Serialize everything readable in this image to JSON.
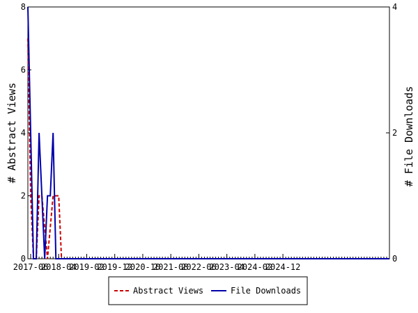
{
  "chart_data": {
    "type": "line",
    "ylabel_left": "# Abstract Views",
    "ylabel_right": "# File Downloads",
    "ylim_left": [
      0,
      8
    ],
    "ylim_right": [
      0,
      4
    ],
    "left_ticks": [
      0,
      2,
      4,
      6,
      8
    ],
    "right_ticks": [
      0,
      2,
      4
    ],
    "x_start": "2017-05",
    "x_ticks": [
      "2017-06",
      "2018-04",
      "2019-02",
      "2019-12",
      "2020-10",
      "2021-08",
      "2022-06",
      "2023-04",
      "2024-02",
      "2024-12"
    ],
    "grid": false,
    "legend_position": "bottom-center",
    "series": [
      {
        "name": "Abstract Views",
        "axis": "left",
        "color": "#cc0000",
        "style": "dashed",
        "values": [
          7,
          2,
          0,
          0,
          2,
          2,
          1,
          0,
          1,
          2,
          2,
          2,
          0,
          0,
          0,
          0,
          0,
          0,
          0,
          0,
          0,
          0,
          0,
          0,
          0,
          0,
          0,
          0,
          0,
          0,
          0,
          0,
          0,
          0,
          0,
          0,
          0,
          0,
          0,
          0,
          0,
          0,
          0,
          0,
          0,
          0,
          0,
          0,
          0,
          0,
          0,
          0,
          0,
          0,
          0,
          0,
          0,
          0,
          0,
          0,
          0,
          0,
          0,
          0,
          0,
          0,
          0,
          0,
          0,
          0,
          0,
          0,
          0,
          0,
          0,
          0,
          0,
          0,
          0,
          0,
          0,
          0,
          0,
          0,
          0,
          0,
          0,
          0,
          0,
          0,
          0,
          0,
          0,
          0,
          0,
          0,
          0,
          0,
          0,
          0,
          0,
          0,
          0,
          0,
          0,
          0,
          0,
          0,
          0,
          0,
          0,
          0,
          0,
          0,
          0,
          0,
          0,
          0,
          0,
          0,
          0,
          0,
          0,
          0,
          0,
          0,
          0,
          0,
          0,
          0
        ]
      },
      {
        "name": "File Downloads",
        "axis": "right",
        "color": "#0000aa",
        "style": "solid",
        "values": [
          4,
          2,
          0,
          0,
          2,
          1,
          0,
          1,
          1,
          2,
          0,
          0,
          0,
          0,
          0,
          0,
          0,
          0,
          0,
          0,
          0,
          0,
          0,
          0,
          0,
          0,
          0,
          0,
          0,
          0,
          0,
          0,
          0,
          0,
          0,
          0,
          0,
          0,
          0,
          0,
          0,
          0,
          0,
          0,
          0,
          0,
          0,
          0,
          0,
          0,
          0,
          0,
          0,
          0,
          0,
          0,
          0,
          0,
          0,
          0,
          0,
          0,
          0,
          0,
          0,
          0,
          0,
          0,
          0,
          0,
          0,
          0,
          0,
          0,
          0,
          0,
          0,
          0,
          0,
          0,
          0,
          0,
          0,
          0,
          0,
          0,
          0,
          0,
          0,
          0,
          0,
          0,
          0,
          0,
          0,
          0,
          0,
          0,
          0,
          0,
          0,
          0,
          0,
          0,
          0,
          0,
          0,
          0,
          0,
          0,
          0,
          0,
          0,
          0,
          0,
          0,
          0,
          0,
          0,
          0,
          0,
          0,
          0,
          0,
          0,
          0,
          0,
          0,
          0,
          0
        ]
      }
    ]
  }
}
